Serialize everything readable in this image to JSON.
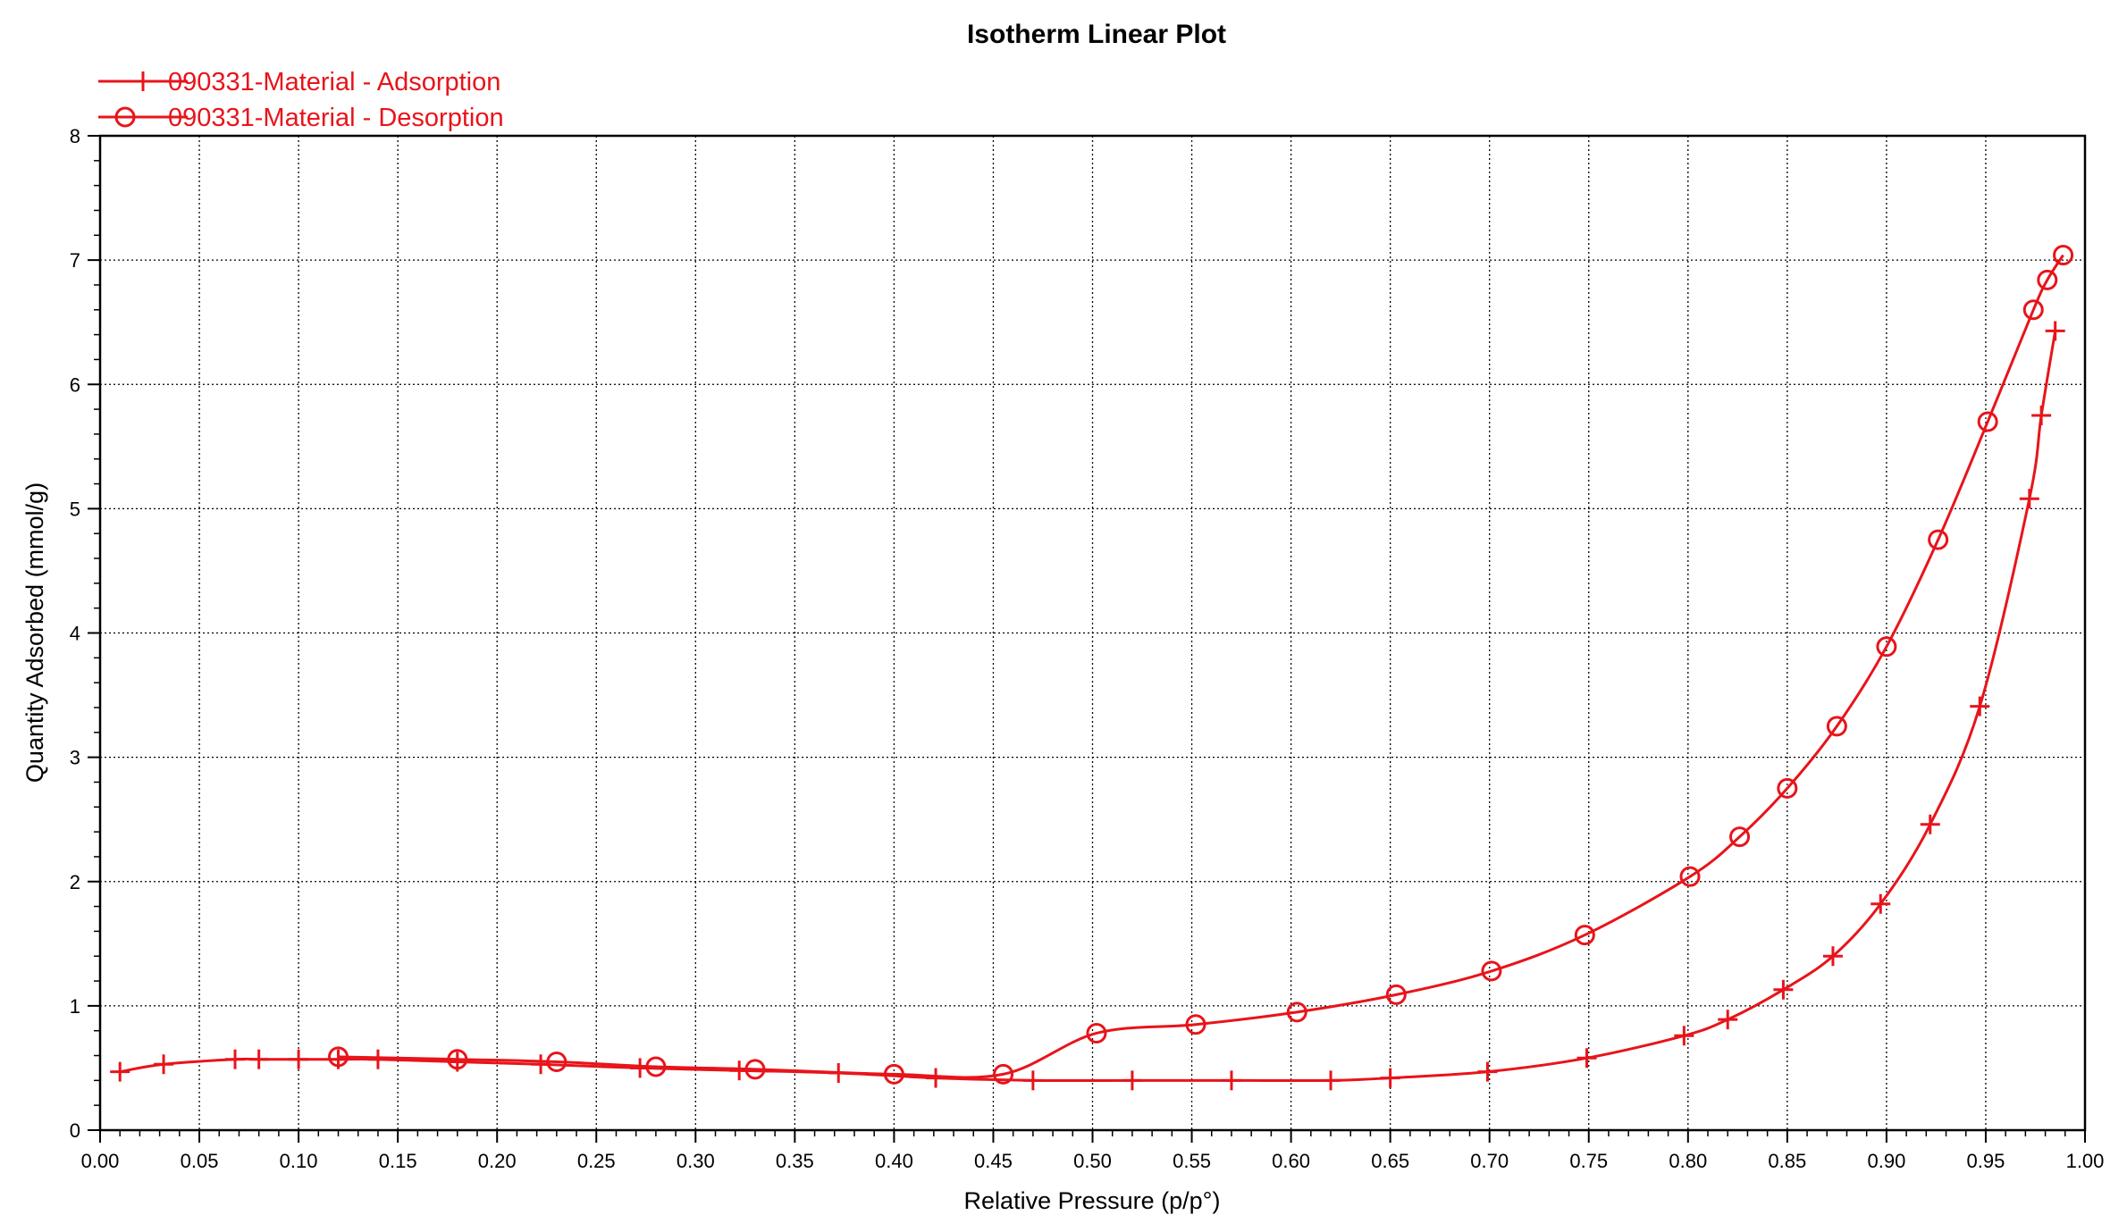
{
  "chart_data": {
    "type": "line",
    "title": "Isotherm Linear Plot",
    "xlabel": "Relative Pressure (p/p°)",
    "ylabel": "Quantity Adsorbed (mmol/g)",
    "xlim": [
      0,
      1
    ],
    "ylim": [
      0,
      8
    ],
    "x_ticks": [
      0.0,
      0.05,
      0.1,
      0.15,
      0.2,
      0.25,
      0.3,
      0.35,
      0.4,
      0.45,
      0.5,
      0.55,
      0.6,
      0.65,
      0.7,
      0.75,
      0.8,
      0.85,
      0.9,
      0.95,
      1.0
    ],
    "x_tick_labels": [
      "0.00",
      "0.05",
      "0.10",
      "0.15",
      "0.20",
      "0.25",
      "0.30",
      "0.35",
      "0.40",
      "0.45",
      "0.50",
      "0.55",
      "0.60",
      "0.65",
      "0.70",
      "0.75",
      "0.80",
      "0.85",
      "0.90",
      "0.95",
      "1.00"
    ],
    "y_ticks": [
      0,
      1,
      2,
      3,
      4,
      5,
      6,
      7,
      8
    ],
    "y_tick_labels": [
      "0",
      "1",
      "2",
      "3",
      "4",
      "5",
      "6",
      "7",
      "8"
    ],
    "grid": true,
    "legend_position": "top-left",
    "color": "#e8141b",
    "series": [
      {
        "name": "090331-Material - Adsorption",
        "marker": "plus",
        "x": [
          0.01,
          0.032,
          0.068,
          0.08,
          0.1,
          0.12,
          0.14,
          0.18,
          0.222,
          0.272,
          0.322,
          0.372,
          0.421,
          0.47,
          0.52,
          0.57,
          0.62,
          0.65,
          0.699,
          0.749,
          0.798,
          0.82,
          0.848,
          0.873,
          0.897,
          0.922,
          0.947,
          0.972,
          0.978,
          0.985
        ],
        "y": [
          0.47,
          0.53,
          0.57,
          0.57,
          0.57,
          0.57,
          0.57,
          0.55,
          0.53,
          0.5,
          0.48,
          0.46,
          0.42,
          0.4,
          0.4,
          0.4,
          0.4,
          0.42,
          0.47,
          0.58,
          0.76,
          0.89,
          1.13,
          1.4,
          1.82,
          2.46,
          3.41,
          5.08,
          5.75,
          6.43
        ]
      },
      {
        "name": "090331-Material - Desorption",
        "marker": "circle",
        "x": [
          0.989,
          0.981,
          0.974,
          0.951,
          0.926,
          0.9,
          0.875,
          0.85,
          0.826,
          0.801,
          0.748,
          0.701,
          0.653,
          0.603,
          0.552,
          0.502,
          0.455,
          0.4,
          0.33,
          0.28,
          0.23,
          0.18,
          0.12
        ],
        "y": [
          7.04,
          6.84,
          6.6,
          5.7,
          4.75,
          3.89,
          3.25,
          2.75,
          2.36,
          2.04,
          1.57,
          1.28,
          1.09,
          0.95,
          0.85,
          0.78,
          0.45,
          0.45,
          0.49,
          0.51,
          0.55,
          0.57,
          0.59
        ]
      }
    ]
  }
}
